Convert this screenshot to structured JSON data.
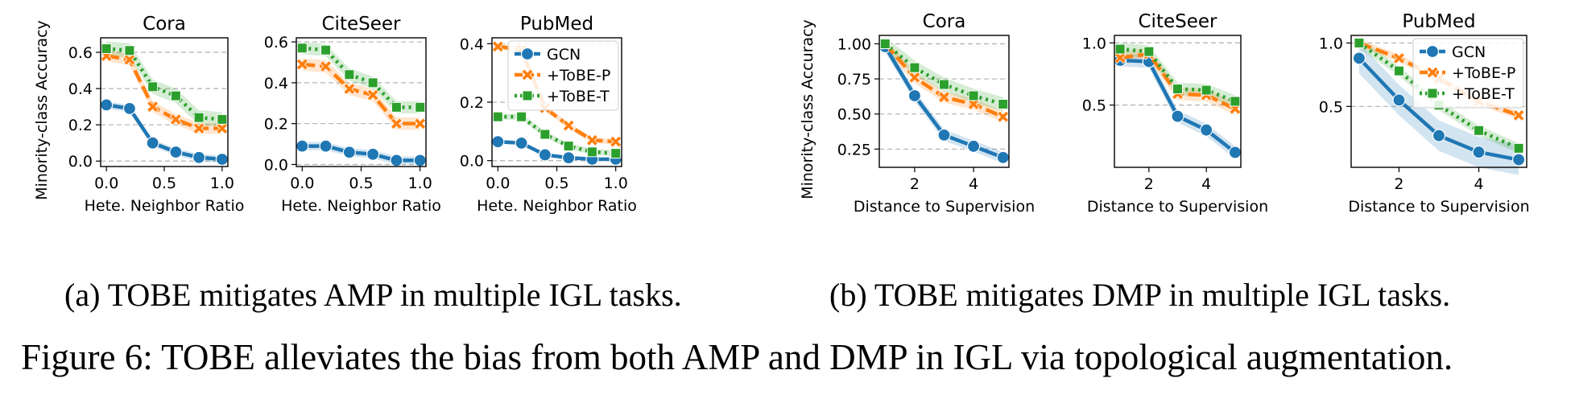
{
  "colors": {
    "GCN": "#1f77b4",
    "+ToBE-P": "#ff7f0e",
    "+ToBE-T": "#2ca02c",
    "grid": "#b0b0b0"
  },
  "legend_labels": [
    "GCN",
    "+ToBE-P",
    "+ToBE-T"
  ],
  "group_a": {
    "ylabel": "Minority-class Accuracy",
    "xlabel": "Hete. Neighbor Ratio"
  },
  "group_b": {
    "ylabel": "Minority-class Accuracy",
    "xlabel": "Distance to Supervision"
  },
  "captions": {
    "sub_a_prefix": "(a)",
    "sub_a_text": "TOBE mitigates AMP in multiple IGL tasks.",
    "sub_b_prefix": "(b)",
    "sub_b_text": "TOBE mitigates DMP in multiple IGL tasks.",
    "figure_label": "Figure 6:",
    "figure_text": "TOBE alleviates the bias from both AMP and DMP in IGL via topological augmentation."
  },
  "chart_data": [
    {
      "type": "line",
      "title": "Cora",
      "xlabel": "Hete. Neighbor Ratio",
      "ylabel": "Minority-class Accuracy",
      "x": [
        0,
        0.2,
        0.4,
        0.6,
        0.8,
        1.0
      ],
      "xlim": [
        -0.05,
        1.05
      ],
      "ylim": [
        -0.03,
        0.68
      ],
      "xticks": [
        "0.0",
        "0.5",
        "1.0"
      ],
      "xtick_values": [
        0,
        0.5,
        1.0
      ],
      "yticks": [
        "0.0",
        "0.2",
        "0.4",
        "0.6"
      ],
      "ytick_values": [
        0,
        0.2,
        0.4,
        0.6
      ],
      "grid": "y",
      "series": [
        {
          "name": "GCN",
          "values": [
            0.31,
            0.29,
            0.1,
            0.05,
            0.02,
            0.01
          ],
          "band": 0.02
        },
        {
          "name": "+ToBE-P",
          "values": [
            0.58,
            0.56,
            0.3,
            0.23,
            0.18,
            0.18
          ],
          "band": 0.03
        },
        {
          "name": "+ToBE-T",
          "values": [
            0.62,
            0.61,
            0.41,
            0.36,
            0.24,
            0.23
          ],
          "band": 0.04
        }
      ]
    },
    {
      "type": "line",
      "title": "CiteSeer",
      "xlabel": "Hete. Neighbor Ratio",
      "ylabel": "",
      "x": [
        0,
        0.2,
        0.4,
        0.6,
        0.8,
        1.0
      ],
      "xlim": [
        -0.05,
        1.05
      ],
      "ylim": [
        -0.01,
        0.62
      ],
      "xticks": [
        "0.0",
        "0.5",
        "1.0"
      ],
      "xtick_values": [
        0,
        0.5,
        1.0
      ],
      "yticks": [
        "0.0",
        "0.2",
        "0.4",
        "0.6"
      ],
      "ytick_values": [
        0,
        0.2,
        0.4,
        0.6
      ],
      "grid": "y",
      "series": [
        {
          "name": "GCN",
          "values": [
            0.09,
            0.09,
            0.06,
            0.05,
            0.02,
            0.02
          ],
          "band": 0.02
        },
        {
          "name": "+ToBE-P",
          "values": [
            0.49,
            0.48,
            0.37,
            0.34,
            0.2,
            0.2
          ],
          "band": 0.03
        },
        {
          "name": "+ToBE-T",
          "values": [
            0.57,
            0.56,
            0.44,
            0.4,
            0.28,
            0.28
          ],
          "band": 0.03
        }
      ]
    },
    {
      "type": "line",
      "title": "PubMed",
      "xlabel": "Hete. Neighbor Ratio",
      "ylabel": "",
      "x": [
        0,
        0.2,
        0.4,
        0.6,
        0.8,
        1.0
      ],
      "xlim": [
        -0.05,
        1.05
      ],
      "ylim": [
        -0.02,
        0.42
      ],
      "xticks": [
        "0.0",
        "0.5",
        "1.0"
      ],
      "xtick_values": [
        0,
        0.5,
        1.0
      ],
      "yticks": [
        "0.0",
        "0.2",
        "0.4"
      ],
      "ytick_values": [
        0,
        0.2,
        0.4
      ],
      "grid": "y",
      "legend": "top-right",
      "series": [
        {
          "name": "GCN",
          "values": [
            0.065,
            0.06,
            0.02,
            0.01,
            0.005,
            0.005
          ],
          "band": 0.005
        },
        {
          "name": "+ToBE-P",
          "values": [
            0.39,
            0.38,
            0.18,
            0.12,
            0.07,
            0.065
          ],
          "band": 0.01
        },
        {
          "name": "+ToBE-T",
          "values": [
            0.15,
            0.15,
            0.09,
            0.05,
            0.03,
            0.025
          ],
          "band": 0.01
        }
      ]
    },
    {
      "type": "line",
      "title": "Cora",
      "xlabel": "Distance to Supervision",
      "ylabel": "Minority-class Accuracy",
      "x": [
        1,
        2,
        3,
        4,
        5
      ],
      "xlim": [
        0.8,
        5.2
      ],
      "ylim": [
        0.12,
        1.06
      ],
      "xticks": [
        "2",
        "4"
      ],
      "xtick_values": [
        2,
        4
      ],
      "yticks": [
        "0.25",
        "0.50",
        "0.75",
        "1.00"
      ],
      "ytick_values": [
        0.25,
        0.5,
        0.75,
        1.0
      ],
      "grid": "y",
      "series": [
        {
          "name": "GCN",
          "values": [
            0.98,
            0.63,
            0.35,
            0.27,
            0.19
          ],
          "band": 0.04
        },
        {
          "name": "+ToBE-P",
          "values": [
            1.0,
            0.76,
            0.62,
            0.57,
            0.48
          ],
          "band": 0.04
        },
        {
          "name": "+ToBE-T",
          "values": [
            1.0,
            0.83,
            0.71,
            0.63,
            0.57
          ],
          "band": 0.05
        }
      ]
    },
    {
      "type": "line",
      "title": "CiteSeer",
      "xlabel": "Distance to Supervision",
      "ylabel": "",
      "x": [
        1,
        2,
        3,
        4,
        5
      ],
      "xlim": [
        0.8,
        5.2
      ],
      "ylim": [
        0.0,
        1.06
      ],
      "xticks": [
        "2",
        "4"
      ],
      "xtick_values": [
        2,
        4
      ],
      "yticks": [
        "0.5",
        "1.0"
      ],
      "ytick_values": [
        0.5,
        1.0
      ],
      "grid": "y",
      "series": [
        {
          "name": "GCN",
          "values": [
            0.86,
            0.85,
            0.41,
            0.3,
            0.12
          ],
          "band": 0.05
        },
        {
          "name": "+ToBE-P",
          "values": [
            0.88,
            0.91,
            0.59,
            0.58,
            0.47
          ],
          "band": 0.05
        },
        {
          "name": "+ToBE-T",
          "values": [
            0.95,
            0.93,
            0.63,
            0.62,
            0.53
          ],
          "band": 0.05
        }
      ]
    },
    {
      "type": "line",
      "title": "PubMed",
      "xlabel": "Distance to Supervision",
      "ylabel": "",
      "x": [
        1,
        2,
        3,
        4,
        5
      ],
      "xlim": [
        0.8,
        5.2
      ],
      "ylim": [
        0.02,
        1.06
      ],
      "xticks": [
        "2",
        "4"
      ],
      "xtick_values": [
        2,
        4
      ],
      "yticks": [
        "0.5",
        "1.0"
      ],
      "ytick_values": [
        0.5,
        1.0
      ],
      "grid": "y",
      "legend": "top-right",
      "series": [
        {
          "name": "GCN",
          "values": [
            0.88,
            0.55,
            0.27,
            0.14,
            0.08
          ],
          "band": 0.12
        },
        {
          "name": "+ToBE-P",
          "values": [
            1.0,
            0.88,
            0.72,
            0.54,
            0.43
          ],
          "band": 0.03
        },
        {
          "name": "+ToBE-T",
          "values": [
            1.0,
            0.78,
            0.51,
            0.31,
            0.17
          ],
          "band": 0.04
        }
      ]
    }
  ]
}
